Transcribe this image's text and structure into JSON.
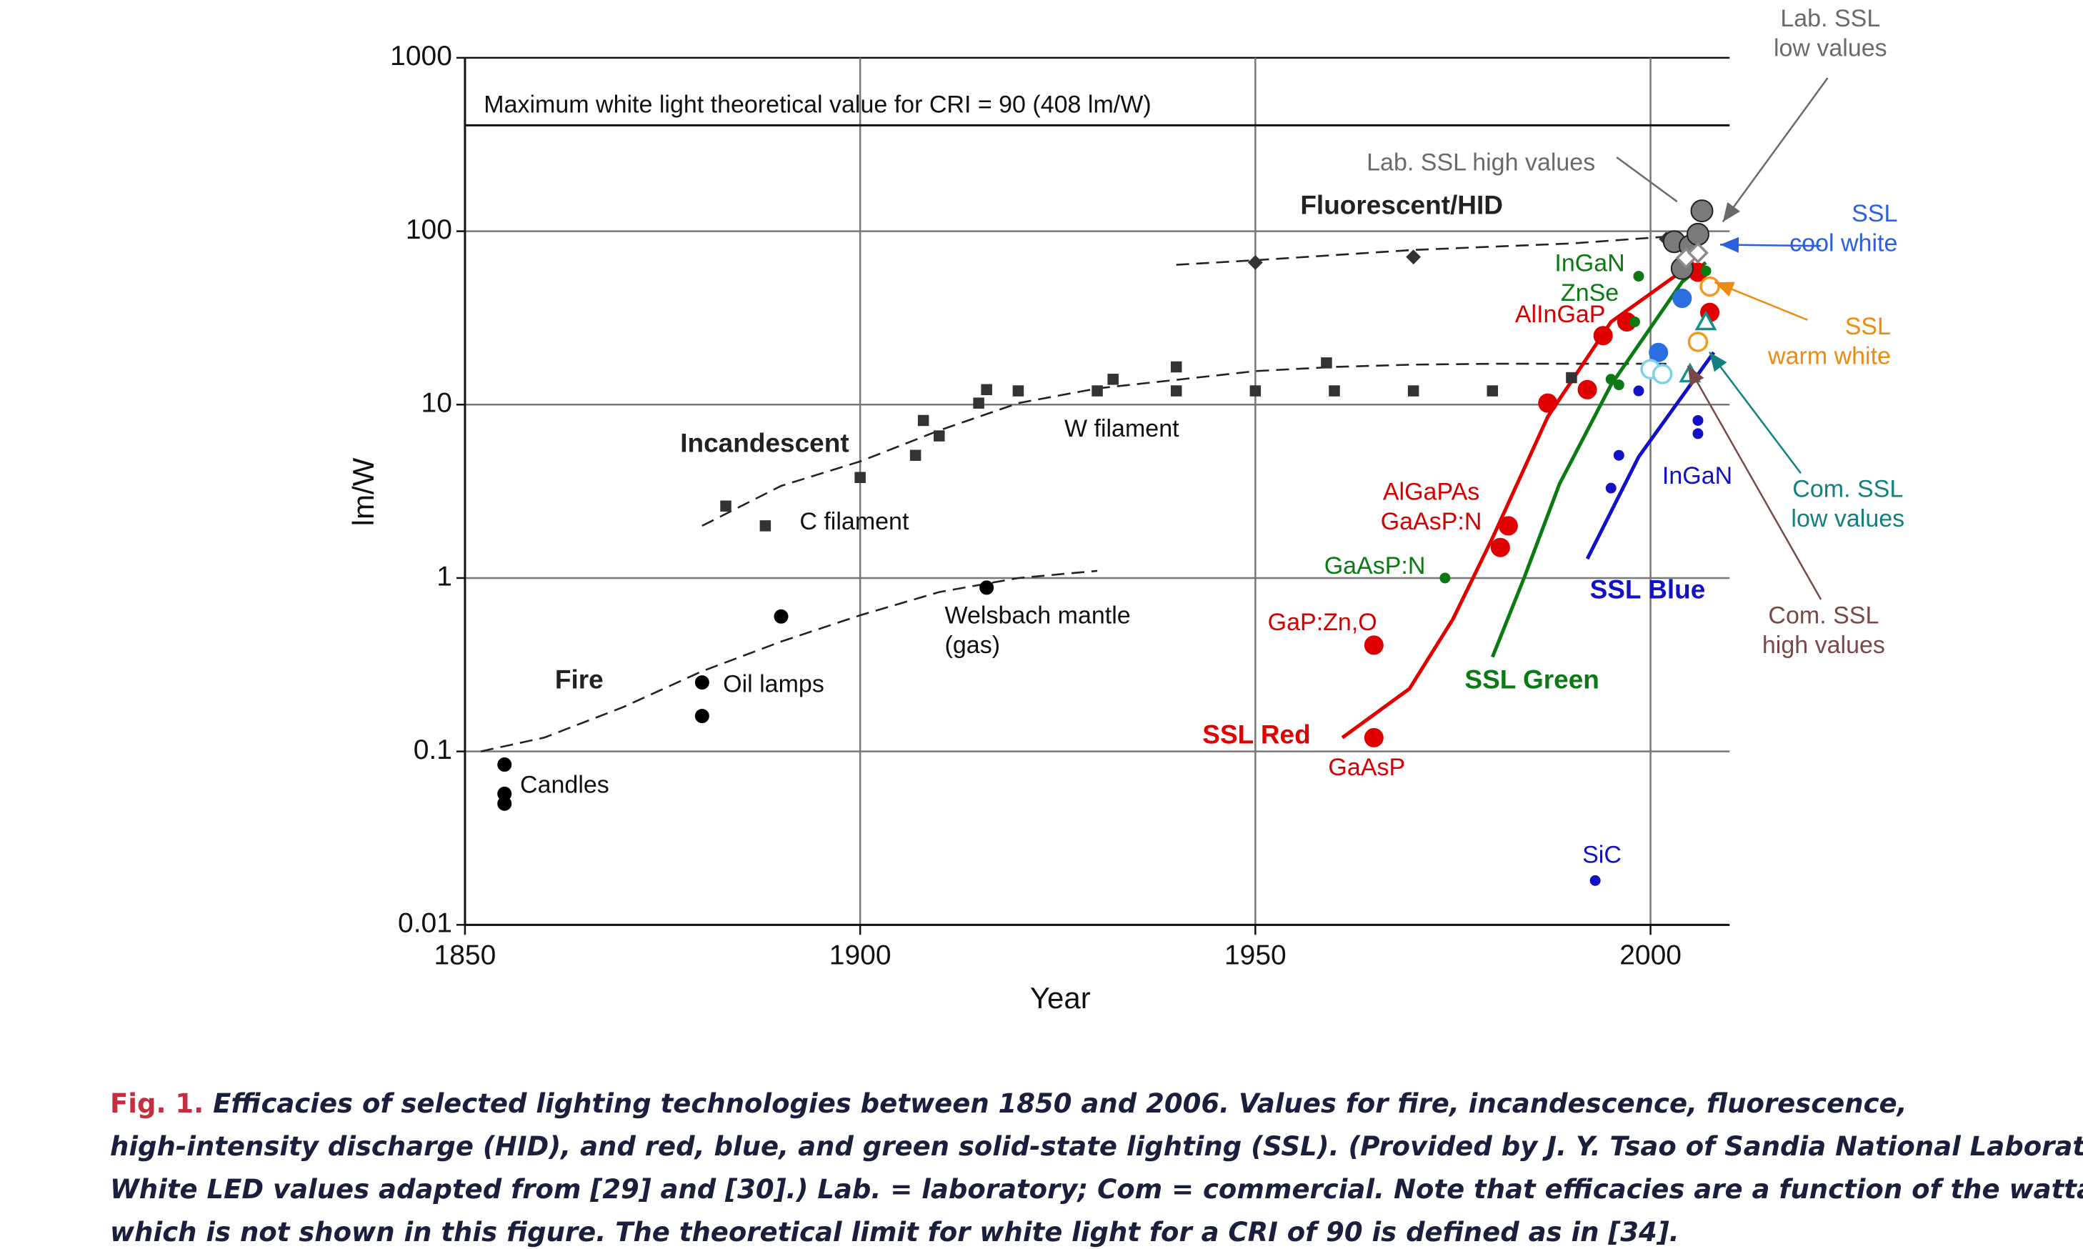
{
  "chart_data": {
    "type": "scatter",
    "xlabel": "Year",
    "ylabel": "lm/W",
    "xlim": [
      1850,
      2010
    ],
    "ylim": [
      0.01,
      1000
    ],
    "log_y": true,
    "grid": true,
    "xticks": [
      1850,
      1900,
      1950,
      2000
    ],
    "yticks": [
      0.01,
      0.1,
      1,
      10,
      100,
      1000
    ],
    "reference_line": {
      "value": 408,
      "label": "Maximum white light theoretical value for CRI = 90 (408 lm/W)"
    },
    "series": [
      {
        "name": "Fire",
        "line": "dashed",
        "color": "#222222",
        "x": [
          1852,
          1860,
          1870,
          1880,
          1890,
          1900,
          1910,
          1920,
          1930
        ],
        "values": [
          0.1,
          0.12,
          0.18,
          0.29,
          0.43,
          0.61,
          0.83,
          1.0,
          1.1
        ]
      },
      {
        "name": "Incandescent",
        "line": "dashed",
        "color": "#222222",
        "x": [
          1880,
          1890,
          1900,
          1910,
          1920,
          1930,
          1940,
          1950,
          1960,
          1970,
          1980,
          2002
        ],
        "values": [
          2.0,
          3.4,
          4.7,
          7.1,
          10.2,
          12.4,
          13.9,
          15.6,
          16.5,
          17,
          17.2,
          17.2
        ]
      },
      {
        "name": "Fluorescent/HID",
        "line": "dashed",
        "color": "#222222",
        "x": [
          1940,
          1950,
          1970,
          1990,
          2002
        ],
        "values": [
          64,
          68,
          78,
          85,
          93
        ]
      },
      {
        "name": "SSL Red",
        "line": "solid",
        "color": "#e00000",
        "x": [
          1961,
          1969.5,
          1975,
          1980,
          1987,
          1995,
          2005.5
        ],
        "values": [
          0.12,
          0.23,
          0.58,
          1.7,
          8.5,
          30,
          66
        ]
      },
      {
        "name": "SSL Green",
        "line": "solid",
        "color": "#0b7a12",
        "x": [
          1980,
          1984,
          1988.5,
          1995,
          2004,
          2007
        ],
        "values": [
          0.35,
          1.0,
          3.5,
          13,
          51,
          66
        ]
      },
      {
        "name": "SSL Blue",
        "line": "solid",
        "color": "#1212c4",
        "x": [
          1992,
          1998.5,
          2008
        ],
        "values": [
          1.29,
          5,
          20
        ]
      },
      {
        "marker": "circle",
        "size": "medium",
        "color": "#000000",
        "x": [
          1855,
          1855,
          1855,
          1880,
          1880,
          1890,
          1916
        ],
        "values": [
          0.084,
          0.057,
          0.05,
          0.25,
          0.16,
          0.6,
          0.88
        ]
      },
      {
        "marker": "square",
        "size": "medium",
        "color": "#333333",
        "x": [
          1883,
          1888,
          1900,
          1907,
          1908,
          1910,
          1915,
          1916,
          1920,
          1930,
          1932,
          1940,
          1940,
          1950,
          1959,
          1960,
          1970,
          1980,
          1990
        ],
        "values": [
          2.6,
          2.0,
          3.8,
          5.1,
          8.1,
          6.6,
          10.2,
          12.2,
          12,
          12,
          14,
          16.5,
          12,
          12,
          17.4,
          12,
          12,
          12,
          14.3
        ]
      },
      {
        "marker": "diamond",
        "size": "medium",
        "color": "#333333",
        "x": [
          1950,
          1970,
          2002
        ],
        "values": [
          66,
          71,
          90
        ]
      },
      {
        "marker": "circle",
        "size": "large",
        "color": "#e00000",
        "x": [
          1965,
          1965,
          1981,
          1982,
          1987,
          1992,
          1994,
          1997,
          2006,
          2007.5
        ],
        "values": [
          0.12,
          0.41,
          1.5,
          2.0,
          10.2,
          12.2,
          25,
          30,
          58,
          34
        ]
      },
      {
        "marker": "circle",
        "size": "small",
        "color": "#0b7a12",
        "x": [
          1974,
          1995,
          1996,
          1998,
          1998.5,
          2007
        ],
        "values": [
          1.0,
          14,
          13,
          30,
          55,
          59
        ]
      },
      {
        "marker": "circle",
        "size": "small",
        "color": "#1212c4",
        "x": [
          1993,
          1995,
          1996,
          1998.5,
          2006,
          2006
        ],
        "values": [
          0.018,
          3.3,
          5.1,
          12,
          8.1,
          6.8
        ]
      },
      {
        "marker": "circle",
        "size": "xlarge",
        "color": "#7a7a7a",
        "x": [
          2003,
          2004,
          2005,
          2006,
          2006.5
        ],
        "values": [
          87,
          61,
          82,
          96,
          131
        ]
      },
      {
        "marker": "diamond",
        "size": "large",
        "open": true,
        "color": "#8a8a8a",
        "x": [
          2004.5,
          2006
        ],
        "values": [
          70,
          75
        ]
      },
      {
        "marker": "circle",
        "size": "large",
        "color": "#2a6fe0",
        "x": [
          2001,
          2004
        ],
        "values": [
          20,
          41
        ]
      },
      {
        "marker": "circle",
        "size": "large",
        "open": true,
        "color": "#f39a1e",
        "x": [
          2006,
          2007.5
        ],
        "values": [
          23,
          48
        ]
      },
      {
        "marker": "triangle",
        "size": "large",
        "open": true,
        "color": "#138f8f",
        "x": [
          2005,
          2007
        ],
        "values": [
          15,
          30
        ]
      },
      {
        "marker": "circle",
        "size": "large",
        "open": true,
        "color": "#7fd0e8",
        "x": [
          2000,
          2001.5
        ],
        "values": [
          16,
          15
        ]
      }
    ],
    "annotations": [
      {
        "lines": [
          "Candles"
        ],
        "color": "#111111"
      },
      {
        "lines": [
          "Oil lamps"
        ],
        "color": "#111111"
      },
      {
        "lines": [
          "C filament"
        ],
        "color": "#111111"
      },
      {
        "lines": [
          "W filament"
        ],
        "color": "#111111"
      },
      {
        "lines": [
          "Welsbach mantle",
          "(gas)"
        ],
        "color": "#111111"
      },
      {
        "lines": [
          "GaAsP"
        ],
        "color": "#d40000"
      },
      {
        "lines": [
          "GaP:Zn,O"
        ],
        "color": "#d40000"
      },
      {
        "lines": [
          "AlGaPAs",
          "GaAsP:N"
        ],
        "color": "#d40000"
      },
      {
        "lines": [
          "GaAsP:N"
        ],
        "color": "#0b7a12"
      },
      {
        "lines": [
          "InGaN",
          "ZnSe"
        ],
        "color": "#0b7a12"
      },
      {
        "lines": [
          "AlInGaP"
        ],
        "color": "#d40000"
      },
      {
        "lines": [
          "InGaN"
        ],
        "color": "#1212c4"
      },
      {
        "lines": [
          "SiC"
        ],
        "color": "#1212c4"
      },
      {
        "lines": [
          "Lab. SSL high values"
        ],
        "color": "#6a6a6a"
      },
      {
        "lines": [
          "Lab. SSL",
          "low values"
        ],
        "color": "#6a6a6a"
      },
      {
        "lines": [
          "SSL",
          "cool white"
        ],
        "color": "#2a5fe0"
      },
      {
        "lines": [
          "SSL",
          "warm white"
        ],
        "color": "#ef8a10"
      },
      {
        "lines": [
          "Com. SSL",
          "low values"
        ],
        "color": "#138080"
      },
      {
        "lines": [
          "Com. SSL",
          "high values"
        ],
        "color": "#7a4848"
      }
    ]
  },
  "caption": {
    "label": "Fig. 1.",
    "lines": [
      "Efficacies of selected lighting technologies between 1850 and 2006. Values for fire, incandescence, fluorescence,",
      "high-intensity discharge (HID), and red, blue, and green solid-state lighting (SSL). (Provided by J. Y. Tsao of Sandia National Laboratory.",
      "White LED values adapted from [29] and [30].) Lab. = laboratory; Com = commercial. Note that efficacies are a function of the wattage,",
      "which is not shown in this figure. The theoretical limit for white light for a CRI of 90 is defined as in [34]."
    ]
  }
}
